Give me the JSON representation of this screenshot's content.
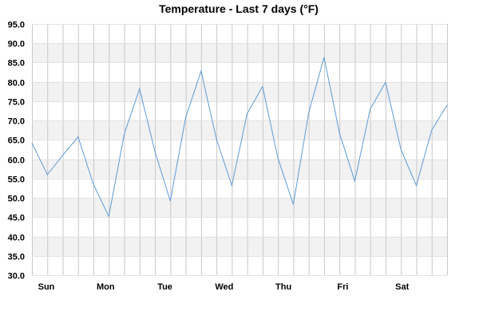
{
  "chart_data": {
    "type": "line",
    "title": "Temperature - Last 7 days (°F)",
    "xlabel": "",
    "ylabel": "",
    "ylim": [
      30.0,
      95.0
    ],
    "y_ticks": [
      "30.0",
      "35.0",
      "40.0",
      "45.0",
      "50.0",
      "55.0",
      "60.0",
      "65.0",
      "70.0",
      "75.0",
      "80.0",
      "85.0",
      "90.0",
      "95.0"
    ],
    "x_tick_labels": [
      "Sun",
      "Mon",
      "Tue",
      "Wed",
      "Thu",
      "Fri",
      "Sat"
    ],
    "grid": true,
    "series": [
      {
        "values": [
          64.2,
          56.0,
          61.0,
          65.8,
          53.5,
          45.2,
          66.5,
          78.2,
          62.0,
          49.2,
          70.8,
          82.8,
          65.2,
          53.2,
          71.8,
          78.8,
          60.3,
          48.3,
          72.0,
          86.4,
          66.8,
          54.3,
          73.0,
          79.9,
          62.5,
          53.2,
          67.5,
          74.0
        ]
      }
    ],
    "colors": {
      "line": "#5b9bd5",
      "band": "#f2f2f2",
      "grid": "#c8c8c8"
    }
  }
}
